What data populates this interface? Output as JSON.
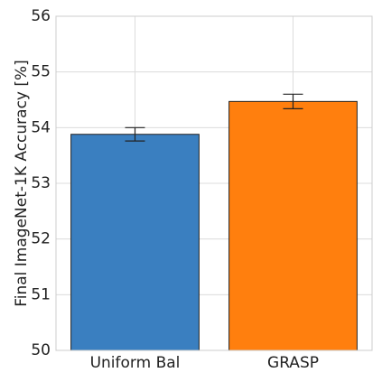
{
  "chart_data": {
    "type": "bar",
    "y_label": "Final ImageNet-1K Accuracy [%]",
    "categories": [
      "Uniform Bal",
      "GRASP"
    ],
    "values": [
      53.88,
      54.47
    ],
    "errors": [
      0.12,
      0.13
    ],
    "colors": [
      "#3a7fc0",
      "#ff7f0e"
    ],
    "ylim": [
      50,
      56
    ],
    "yticks": [
      50,
      51,
      52,
      53,
      54,
      55,
      56
    ],
    "grid": true
  }
}
